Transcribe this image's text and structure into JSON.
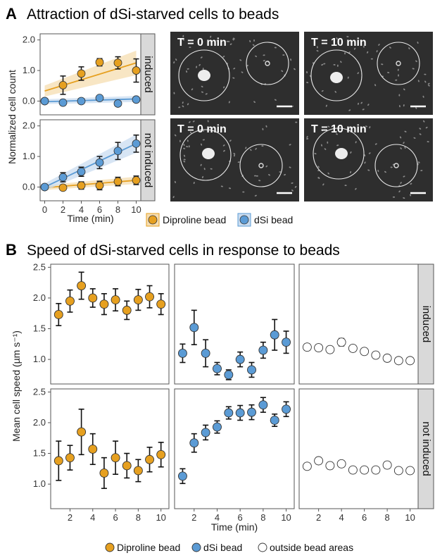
{
  "panel_a": {
    "letter": "A",
    "title": "Attraction of dSi-starved cells to beads",
    "micrograph_labels": [
      "T = 0 min",
      "T = 10 min",
      "T = 0 min",
      "T = 10 min"
    ]
  },
  "panel_b": {
    "letter": "B",
    "title": "Speed of dSi-starved cells in response to beads"
  },
  "colors": {
    "diproline": "#e6a020",
    "dsi": "#5b9bd5",
    "outside": "#ffffff",
    "strip": "#d9d9d9",
    "diproline_band": "#f6ddb0",
    "dsi_band": "#c9dcf0"
  },
  "legend_a": {
    "items": [
      {
        "label": "Diproline bead",
        "color": "#e6a020"
      },
      {
        "label": "dSi bead",
        "color": "#5b9bd5"
      }
    ]
  },
  "legend_b": {
    "items": [
      {
        "label": "Diproline bead",
        "color": "#e6a020"
      },
      {
        "label": "dSi bead",
        "color": "#5b9bd5"
      },
      {
        "label": "outside bead areas",
        "color": "#ffffff"
      }
    ]
  },
  "chart_data": [
    {
      "type": "scatter",
      "panel": "A",
      "ylabel": "Normalized cell count",
      "xlabel": "Time (min)",
      "xlim": [
        -0.5,
        10.5
      ],
      "ylim": [
        -0.45,
        2.2
      ],
      "x_ticks": [
        0,
        2,
        4,
        6,
        8,
        10
      ],
      "y_ticks": [
        0.0,
        1.0,
        2.0
      ],
      "y_tick_labels": [
        "0.0",
        "1.0",
        "2.0"
      ],
      "facets": [
        "induced",
        "not induced"
      ],
      "x": [
        0,
        2,
        4,
        6,
        8,
        10
      ],
      "series": [
        {
          "name": "Diproline bead",
          "facet": "induced",
          "values": [
            0.0,
            0.52,
            0.9,
            1.27,
            1.25,
            1.0
          ],
          "err": [
            0.05,
            0.3,
            0.22,
            0.12,
            0.2,
            0.38
          ],
          "fit": [
            0.33,
            1.25
          ],
          "band": [
            0.18,
            0.4
          ]
        },
        {
          "name": "dSi bead",
          "facet": "induced",
          "values": [
            0.0,
            -0.05,
            0.0,
            0.1,
            -0.08,
            0.05
          ],
          "err": [
            0.04,
            0.08,
            0.06,
            0.07,
            0.08,
            0.06
          ],
          "fit": [
            -0.02,
            0.07
          ],
          "band": [
            0.08,
            0.1
          ]
        },
        {
          "name": "Diproline bead",
          "facet": "not induced",
          "values": [
            0.0,
            -0.02,
            0.05,
            0.05,
            0.18,
            0.22
          ],
          "err": [
            0.04,
            0.08,
            0.12,
            0.14,
            0.14,
            0.14
          ],
          "fit": [
            -0.02,
            0.22
          ],
          "band": [
            0.08,
            0.12
          ]
        },
        {
          "name": "dSi bead",
          "facet": "not induced",
          "values": [
            0.0,
            0.32,
            0.5,
            0.8,
            1.18,
            1.42
          ],
          "err": [
            0.04,
            0.15,
            0.15,
            0.2,
            0.28,
            0.28
          ],
          "fit": [
            0.0,
            1.42
          ],
          "band": [
            0.12,
            0.3
          ]
        }
      ]
    },
    {
      "type": "scatter",
      "panel": "B",
      "ylabel": "Mean cell speed (µm s⁻¹)",
      "xlabel": "Time (min)",
      "xlim": [
        0.3,
        10.7
      ],
      "ylim": [
        0.6,
        2.55
      ],
      "x_ticks": [
        2,
        4,
        6,
        8,
        10
      ],
      "y_ticks": [
        1.0,
        1.5,
        2.0,
        2.5
      ],
      "y_tick_labels": [
        "1.0",
        "1.5",
        "2.0",
        "2.5"
      ],
      "rows": [
        "induced",
        "not induced"
      ],
      "columns": [
        "Diproline bead",
        "dSi bead",
        "outside bead areas"
      ],
      "x": [
        1,
        2,
        3,
        4,
        5,
        6,
        7,
        8,
        9,
        10
      ],
      "series": [
        {
          "name": "Diproline bead",
          "row": "induced",
          "values": [
            1.73,
            1.95,
            2.2,
            2.0,
            1.9,
            1.97,
            1.8,
            1.97,
            2.02,
            1.9
          ],
          "err": [
            0.18,
            0.18,
            0.22,
            0.15,
            0.17,
            0.18,
            0.15,
            0.17,
            0.18,
            0.17
          ]
        },
        {
          "name": "dSi bead",
          "row": "induced",
          "values": [
            1.1,
            1.52,
            1.1,
            0.85,
            0.75,
            1.0,
            0.83,
            1.15,
            1.4,
            1.28
          ],
          "err": [
            0.15,
            0.28,
            0.22,
            0.1,
            0.08,
            0.12,
            0.12,
            0.13,
            0.25,
            0.18
          ]
        },
        {
          "name": "outside bead areas",
          "row": "induced",
          "values": [
            1.2,
            1.19,
            1.16,
            1.28,
            1.18,
            1.13,
            1.07,
            1.02,
            0.98,
            0.98
          ],
          "err": [
            0.05,
            0.05,
            0.05,
            0.06,
            0.05,
            0.04,
            0.04,
            0.04,
            0.04,
            0.04
          ]
        },
        {
          "name": "Diproline bead",
          "row": "not induced",
          "values": [
            1.38,
            1.43,
            1.85,
            1.57,
            1.18,
            1.43,
            1.3,
            1.22,
            1.4,
            1.48
          ],
          "err": [
            0.32,
            0.2,
            0.37,
            0.25,
            0.25,
            0.27,
            0.2,
            0.18,
            0.2,
            0.2
          ]
        },
        {
          "name": "dSi bead",
          "row": "not induced",
          "values": [
            1.13,
            1.67,
            1.84,
            1.93,
            2.16,
            2.16,
            2.17,
            2.29,
            2.04,
            2.22
          ],
          "err": [
            0.12,
            0.15,
            0.12,
            0.1,
            0.1,
            0.12,
            0.12,
            0.12,
            0.1,
            0.12
          ]
        },
        {
          "name": "outside bead areas",
          "row": "not induced",
          "values": [
            1.29,
            1.38,
            1.3,
            1.33,
            1.23,
            1.23,
            1.23,
            1.31,
            1.22,
            1.22
          ],
          "err": [
            0.05,
            0.05,
            0.05,
            0.05,
            0.04,
            0.04,
            0.04,
            0.05,
            0.04,
            0.04
          ]
        }
      ]
    }
  ]
}
